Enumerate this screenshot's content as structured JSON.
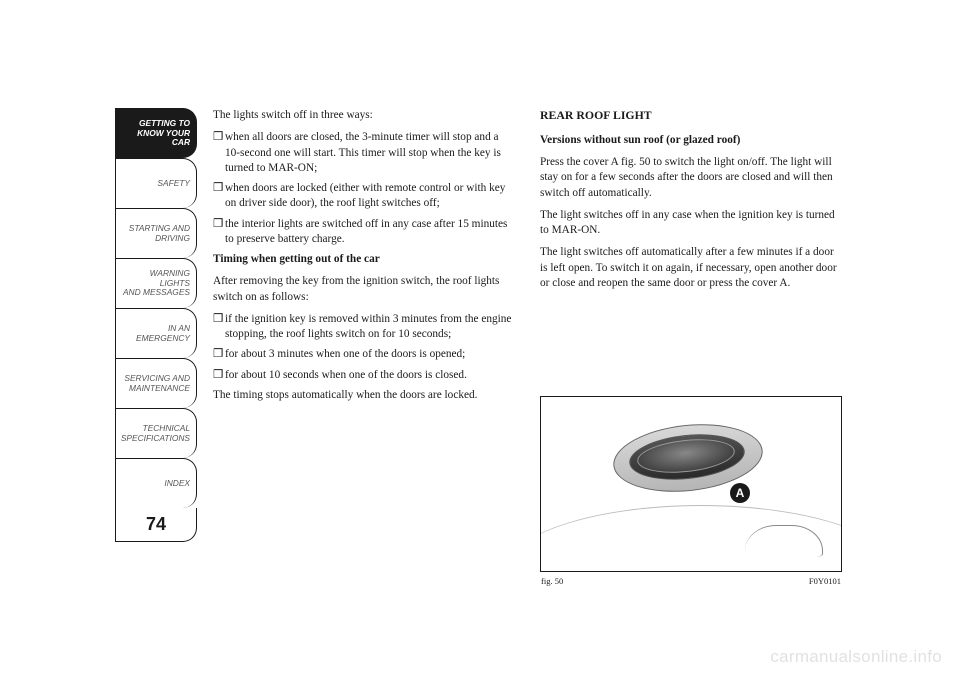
{
  "nav": {
    "items": [
      "GETTING TO\nKNOW YOUR CAR",
      "SAFETY",
      "STARTING AND\nDRIVING",
      "WARNING LIGHTS\nAND MESSAGES",
      "IN AN EMERGENCY",
      "SERVICING AND\nMAINTENANCE",
      "TECHNICAL\nSPECIFICATIONS",
      "INDEX"
    ],
    "active_index": 0,
    "page_number": "74"
  },
  "col_left": {
    "intro": "The lights switch off in three ways:",
    "l1": "when all doors are closed, the 3-minute timer will stop and a 10-second one will start. This timer will stop when the key is turned to MAR-ON;",
    "l2": "when doors are locked (either with remote control or with key on driver side door), the roof light switches off;",
    "l3": "the interior lights are switched off in any case after 15 minutes to preserve battery charge.",
    "h1": "Timing when getting out of the car",
    "p2": "After removing the key from the ignition switch, the roof lights switch on as follows:",
    "l4": "if the ignition key is removed within 3 minutes from the engine stopping, the roof lights switch on for 10 seconds;",
    "l5": "for about 3 minutes when one of the doors is opened;",
    "l6": "for about 10 seconds when one of the doors is closed.",
    "p3": "The timing stops automatically when the doors are locked."
  },
  "col_right": {
    "h1": "REAR ROOF LIGHT",
    "h2": "Versions without sun roof (or glazed roof)",
    "p1": "Press the cover A fig. 50 to switch the light on/off. The light will stay on for a few seconds after the doors are closed and will then switch off automatically.",
    "p2": "The light switches off in any case when the ignition key is turned to MAR-ON.",
    "p3": "The light switches off automatically after a few minutes if a door is left open. To switch it on again, if necessary, open another door or close and reopen the same door or press the cover A."
  },
  "figure": {
    "label": "A",
    "caption_left": "fig. 50",
    "caption_right": "F0Y0101"
  },
  "bullet": "❒",
  "watermark": "carmanualsonline.info"
}
